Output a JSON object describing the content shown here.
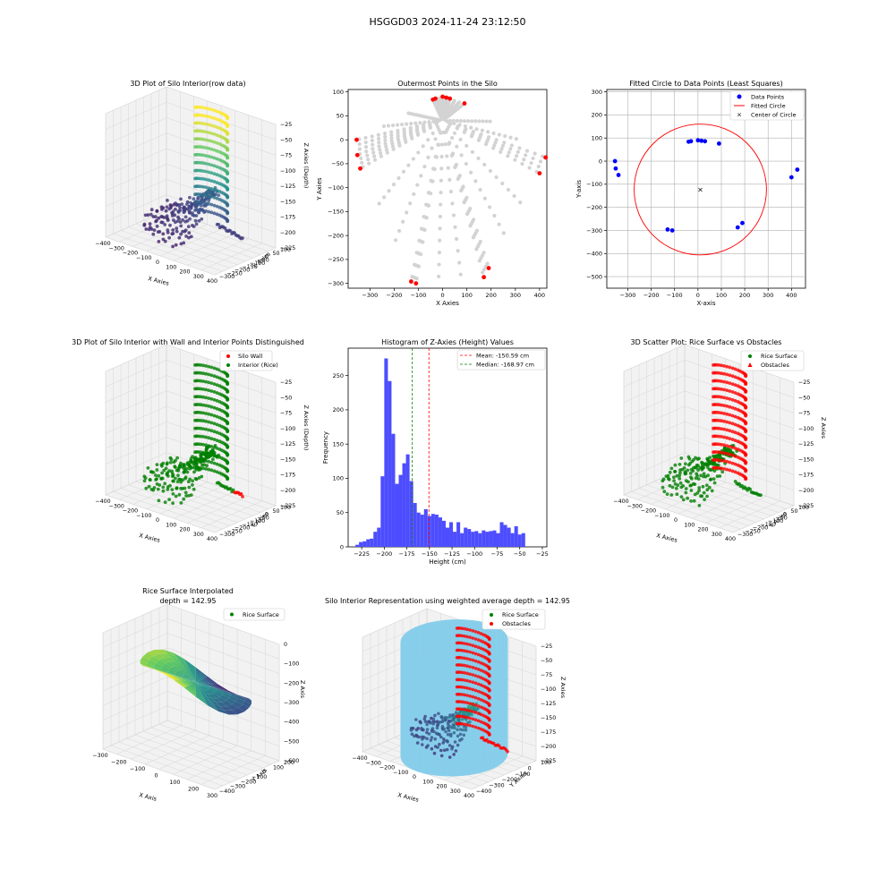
{
  "figure": {
    "suptitle": "HSGGD03 2024-11-24 23:12:50"
  },
  "colors": {
    "blue": "#0000ff",
    "red": "#ff0000",
    "green": "#008000",
    "lightgray": "#d3d3d3",
    "hist_blue": "#4d4dff",
    "skyblue": "#87ceeb",
    "viridis": [
      "#440154",
      "#3b528b",
      "#21918c",
      "#5ec962",
      "#fde725"
    ]
  },
  "panels": {
    "p1": {
      "title": "3D Plot of Silo Interior(row data)",
      "xlabel": "X Axies",
      "ylabel": "Y Axies",
      "zlabel": "Z Axies (Depth)",
      "xticks": [
        "−400",
        "−300",
        "−200",
        "−100",
        "0",
        "100",
        "200",
        "300",
        "400"
      ],
      "yticks": [
        "100",
        "50",
        "0",
        "−50",
        "−100",
        "−150",
        "−200",
        "−250",
        "−300"
      ],
      "zticks": [
        "−25",
        "−50",
        "−75",
        "−100",
        "−125",
        "−150",
        "−175",
        "−200",
        "−225"
      ]
    },
    "p2": {
      "title": "Outermost Points in the Silo",
      "xlabel": "X Axies",
      "ylabel": "Y Axies"
    },
    "p3": {
      "title": "Fitted Circle to Data Points (Least Squares)",
      "xlabel": "X-axis",
      "ylabel": "Y-axis",
      "legend": [
        "Data Points",
        "Fitted Circle",
        "Center of Circle"
      ]
    },
    "p4": {
      "title": "3D Plot of Silo Interior with Wall and Interior Points Distinguished",
      "xlabel": "X Axies",
      "ylabel": "Y Axies",
      "zlabel": "Z Axies (Depth)",
      "legend": [
        "Silo Wall",
        "Interior (Rice)"
      ],
      "xticks": [
        "−400",
        "−300",
        "−200",
        "−100",
        "0",
        "100",
        "200",
        "300",
        "400"
      ],
      "yticks": [
        "100",
        "50",
        "0",
        "−50",
        "−100",
        "−150",
        "−200",
        "−250",
        "−300"
      ],
      "zticks": [
        "−25",
        "−50",
        "−75",
        "−100",
        "−125",
        "−150",
        "−175",
        "−200",
        "−225"
      ]
    },
    "p5": {
      "title": "Histogram of Z-Axies (Height) Values",
      "xlabel": "Height (cm)",
      "ylabel": "Frequency",
      "legend": [
        "Mean: -150.59 cm",
        "Median: -168.97 cm"
      ]
    },
    "p6": {
      "title": "3D Scatter Plot: Rice Surface vs Obstacles",
      "xlabel": "X Axies",
      "ylabel": "Y Axies",
      "zlabel": "Z Axies",
      "legend": [
        "Rice Surface",
        "Obstacles"
      ],
      "xticks": [
        "−400",
        "−300",
        "−200",
        "−100",
        "0",
        "100",
        "200",
        "300",
        "400"
      ],
      "yticks": [
        "100",
        "50",
        "0",
        "−50",
        "−100",
        "−150",
        "−200",
        "−250",
        "−300"
      ],
      "zticks": [
        "−25",
        "−50",
        "−75",
        "−100",
        "−125",
        "−150",
        "−175",
        "−200",
        "−225"
      ]
    },
    "p7": {
      "title": "Rice Surface Interpolated",
      "subtitle": "depth = 142.95",
      "xlabel": "X Axis",
      "ylabel": "Y Axis",
      "zlabel": "Z Axis",
      "legend": [
        "Rice Surface"
      ],
      "xticks": [
        "−300",
        "−200",
        "−100",
        "0",
        "100",
        "200",
        "300"
      ],
      "yticks": [
        "200",
        "100",
        "0",
        "−100",
        "−200",
        "−300",
        "−400"
      ],
      "zticks": [
        "0",
        "−100",
        "−200",
        "−300",
        "−400",
        "−500",
        "−600"
      ]
    },
    "p8": {
      "title": "Silo Interior Representation using weighted average depth = 142.95",
      "xlabel": "X Axies",
      "ylabel": "Y Axies",
      "zlabel": "Z Axies",
      "legend": [
        "Rice Surface",
        "Obstacles"
      ],
      "xticks": [
        "−400",
        "−300",
        "−200",
        "−100",
        "0",
        "100",
        "200",
        "300",
        "400"
      ],
      "yticks": [
        "100",
        "0",
        "−100",
        "−200",
        "−300",
        "−400"
      ],
      "zticks": [
        "−25",
        "−50",
        "−75",
        "−100",
        "−125",
        "−150",
        "−175",
        "−200",
        "−225"
      ]
    }
  },
  "chart_data": [
    {
      "id": "p1",
      "type": "scatter",
      "title": "3D Plot of Silo Interior(row data)",
      "projection": "3d",
      "colormap": "viridis",
      "xlim": [
        -400,
        400
      ],
      "ylim": [
        -300,
        100
      ],
      "zlim": [
        -230,
        -20
      ]
    },
    {
      "id": "p2",
      "type": "scatter",
      "title": "Outermost Points in the Silo",
      "xlabel": "X Axies",
      "ylabel": "Y Axies",
      "xlim": [
        -390,
        430
      ],
      "ylim": [
        -310,
        105
      ],
      "xticks": [
        -300,
        -200,
        -100,
        0,
        100,
        200,
        300,
        400
      ],
      "yticks": [
        100,
        50,
        0,
        -50,
        -100,
        -150,
        -200,
        -250,
        -300
      ],
      "all_points_rays_origin": [
        0,
        40
      ],
      "outermost_points": {
        "x": [
          -355,
          -352,
          -340,
          -40,
          -30,
          0,
          15,
          30,
          90,
          400,
          425,
          190,
          170,
          -130,
          -110
        ],
        "y": [
          0,
          -32,
          -60,
          84,
          86,
          90,
          88,
          86,
          76,
          -70,
          -37,
          -268,
          -287,
          -296,
          -300
        ]
      }
    },
    {
      "id": "p3",
      "type": "scatter",
      "title": "Fitted Circle to Data Points (Least Squares)",
      "xlabel": "X-axis",
      "ylabel": "Y-axis",
      "xlim": [
        -390,
        460
      ],
      "ylim": [
        -550,
        310
      ],
      "grid": true,
      "legend_position": "top-right",
      "xticks": [
        -300,
        -200,
        -100,
        0,
        100,
        200,
        300,
        400
      ],
      "yticks": [
        300,
        200,
        100,
        0,
        -100,
        -200,
        -300,
        -400,
        -500
      ],
      "data_points": {
        "x": [
          -355,
          -352,
          -340,
          -40,
          -30,
          0,
          15,
          30,
          90,
          400,
          425,
          190,
          170,
          -130,
          -110
        ],
        "y": [
          0,
          -32,
          -60,
          84,
          86,
          90,
          88,
          86,
          76,
          -70,
          -37,
          -268,
          -287,
          -296,
          -300
        ]
      },
      "fitted_circle": {
        "cx": 10,
        "cy": -123,
        "r": 283
      },
      "center": {
        "x": 10,
        "y": -123
      }
    },
    {
      "id": "p4",
      "type": "scatter",
      "title": "3D Plot of Silo Interior with Wall and Interior Points Distinguished",
      "projection": "3d",
      "series": [
        {
          "name": "Silo Wall",
          "color": "#ff0000"
        },
        {
          "name": "Interior (Rice)",
          "color": "#008000"
        }
      ],
      "xlim": [
        -400,
        400
      ],
      "ylim": [
        -300,
        100
      ],
      "zlim": [
        -230,
        -20
      ],
      "legend_position": "top-right"
    },
    {
      "id": "p5",
      "type": "bar",
      "title": "Histogram of Z-Axies (Height) Values",
      "xlabel": "Height (cm)",
      "ylabel": "Frequency",
      "xlim": [
        -240,
        -20
      ],
      "ylim": [
        0,
        290
      ],
      "xticks": [
        -225,
        -200,
        -175,
        -150,
        -125,
        -100,
        -75,
        -50,
        -25
      ],
      "yticks": [
        0,
        50,
        100,
        150,
        200,
        250
      ],
      "bin_start": -232,
      "bin_width": 4,
      "values": [
        3,
        7,
        8,
        11,
        12,
        22,
        28,
        103,
        275,
        242,
        165,
        92,
        105,
        122,
        135,
        96,
        64,
        50,
        47,
        55,
        45,
        48,
        47,
        43,
        38,
        28,
        36,
        22,
        36,
        20,
        28,
        26,
        22,
        23,
        20,
        24,
        22,
        23,
        24,
        20,
        36,
        32,
        28,
        20,
        30,
        18,
        20
      ],
      "mean": -150.59,
      "median": -168.97,
      "legend_position": "top-right"
    },
    {
      "id": "p6",
      "type": "scatter",
      "title": "3D Scatter Plot: Rice Surface vs Obstacles",
      "projection": "3d",
      "series": [
        {
          "name": "Rice Surface",
          "color": "#008000"
        },
        {
          "name": "Obstacles",
          "color": "#ff0000"
        }
      ],
      "xlim": [
        -400,
        400
      ],
      "ylim": [
        -300,
        100
      ],
      "zlim": [
        -230,
        -20
      ],
      "legend_position": "top-right"
    },
    {
      "id": "p7",
      "type": "area",
      "title": "Rice Surface Interpolated",
      "subtitle": "depth = 142.95",
      "projection": "3d",
      "colormap": "viridis",
      "series": [
        {
          "name": "Rice Surface"
        }
      ],
      "xlim": [
        -300,
        300
      ],
      "ylim": [
        -400,
        200
      ],
      "zlim": [
        -600,
        0
      ]
    },
    {
      "id": "p8",
      "type": "scatter",
      "title": "Silo Interior Representation using weighted average depth = 142.95",
      "projection": "3d",
      "series": [
        {
          "name": "Rice Surface",
          "color": "#008000"
        },
        {
          "name": "Obstacles",
          "color": "#ff0000"
        }
      ],
      "xlim": [
        -400,
        400
      ],
      "ylim": [
        -400,
        100
      ],
      "zlim": [
        -230,
        -20
      ],
      "legend_position": "top-right"
    }
  ]
}
